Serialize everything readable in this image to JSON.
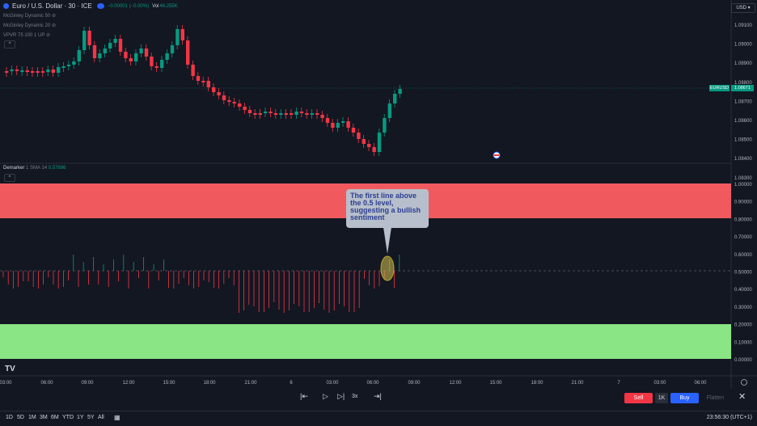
{
  "header": {
    "symbol": "Euro / U.S. Dollar · 30 · ICE",
    "change": "−0.00001 (−0.00%)",
    "volume_label": "Vol",
    "volume": "46.255K",
    "currency": "USD"
  },
  "indicators": [
    {
      "label": "McGinley Dynamic 50"
    },
    {
      "label": "McGinley Dynamic 20"
    },
    {
      "label": "VPVR 75 100 1 UP"
    }
  ],
  "lower_pane": {
    "name": "Demarker",
    "params": "1 SMA 14",
    "value": "0.57686"
  },
  "price_axis": [
    "1.09100",
    "1.09000",
    "1.08900",
    "1.08800",
    "1.08700",
    "1.08600",
    "1.08500",
    "1.08400",
    "1.08300"
  ],
  "last_price": {
    "symbol": "EURUSD",
    "price": "1.08671"
  },
  "osc_axis": [
    "1.00000",
    "0.90000",
    "0.80000",
    "0.70000",
    "0.60000",
    "0.50000",
    "0.40000",
    "0.30000",
    "0.20000",
    "0.10000",
    "0.00000"
  ],
  "time_axis": [
    "03:00",
    "06:00",
    "09:00",
    "12:00",
    "15:00",
    "18:00",
    "21:00",
    "6",
    "03:00",
    "06:00",
    "09:00",
    "12:00",
    "15:00",
    "18:00",
    "21:00",
    "7",
    "03:00",
    "06:00"
  ],
  "annotation": {
    "text": "The first line above the 0.5 level, suggesting a bullish sentiment"
  },
  "replay": {
    "speed": "3x"
  },
  "trade": {
    "sell": "Sell",
    "qty": "1K",
    "buy": "Buy",
    "flatten": "Flatten"
  },
  "ranges": [
    "1D",
    "5D",
    "1M",
    "3M",
    "6M",
    "YTD",
    "1Y",
    "5Y",
    "All"
  ],
  "clock": "23:56:30 (UTC+1)",
  "colors": {
    "up": "#089981",
    "down": "#f23645",
    "overbought_zone": "#f05a5f",
    "oversold_zone": "#8ae584",
    "callout_bg": "#b7bfcc",
    "callout_text": "#2c3e8f"
  }
}
